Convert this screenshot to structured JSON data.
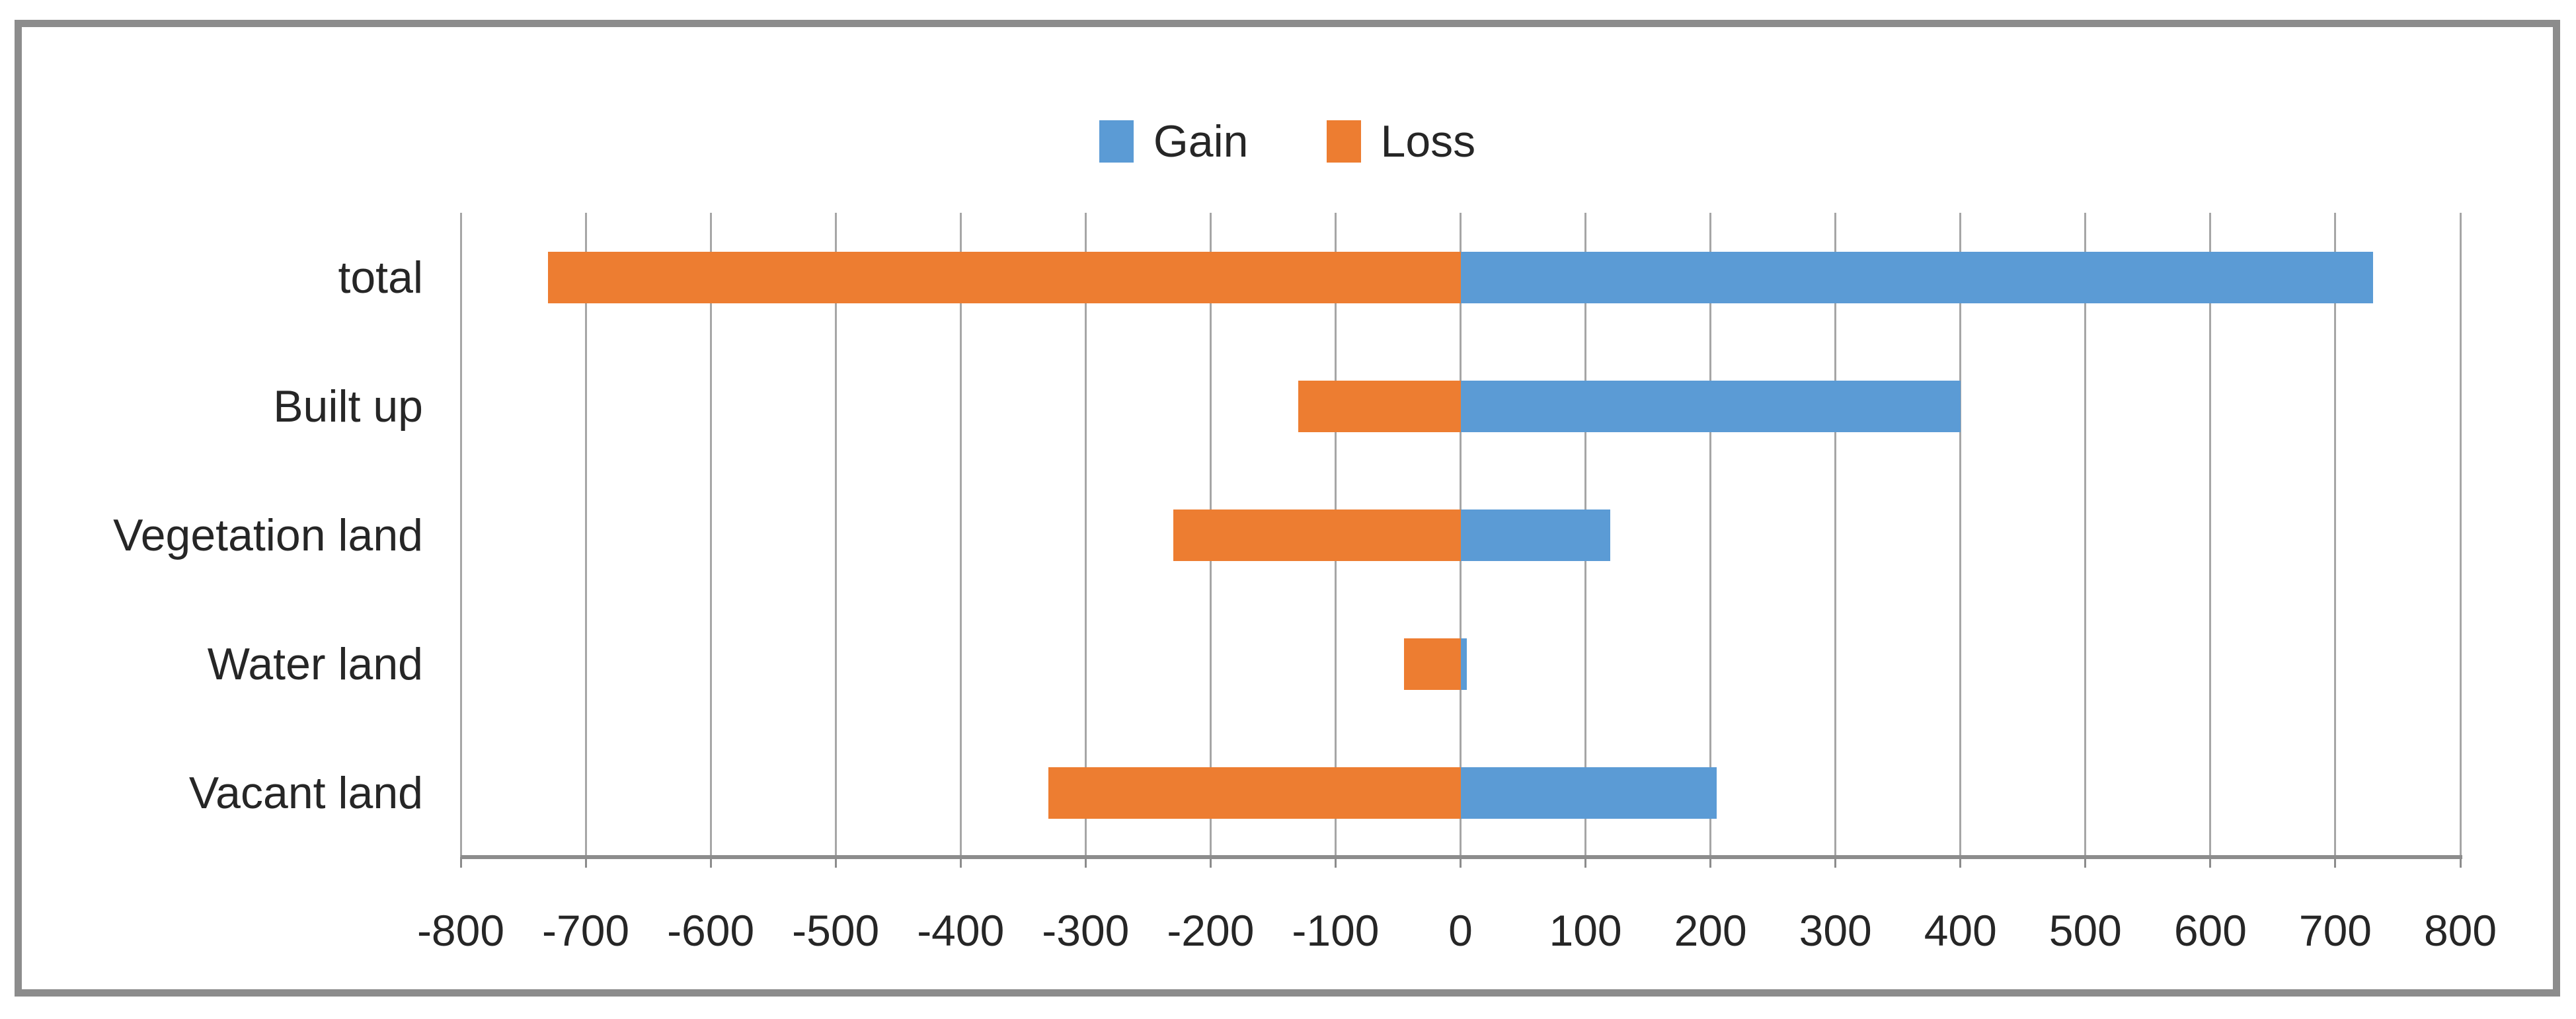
{
  "frame": {
    "border_color": "#8C8C8C",
    "background_color": "#FFFFFF"
  },
  "legend": {
    "position": "top-center",
    "items": [
      {
        "label": "Gain",
        "color": "#5B9BD5"
      },
      {
        "label": "Loss",
        "color": "#ED7D31"
      }
    ]
  },
  "chart_data": {
    "type": "bar",
    "orientation": "horizontal",
    "title": "",
    "xlabel": "",
    "ylabel": "",
    "categories": [
      "total",
      "Built up",
      "Vegetation land",
      "Water land",
      "Vacant land"
    ],
    "series": [
      {
        "name": "Gain",
        "color": "#5B9BD5",
        "values": [
          730,
          400,
          120,
          5,
          205
        ]
      },
      {
        "name": "Loss",
        "color": "#ED7D31",
        "values": [
          -730,
          -130,
          -230,
          -45,
          -330
        ]
      }
    ],
    "xlim": [
      -800,
      800
    ],
    "x_tick_step": 100,
    "x_tick_labels": [
      "-800",
      "-700",
      "-600",
      "-500",
      "-400",
      "-300",
      "-200",
      "-100",
      "0",
      "100",
      "200",
      "300",
      "400",
      "500",
      "600",
      "700",
      "800"
    ],
    "grid": true,
    "gridline_color": "#A6A6A6",
    "axis_line_color": "#8C8C8C",
    "text_color": "#262626",
    "legend_position": "top"
  }
}
